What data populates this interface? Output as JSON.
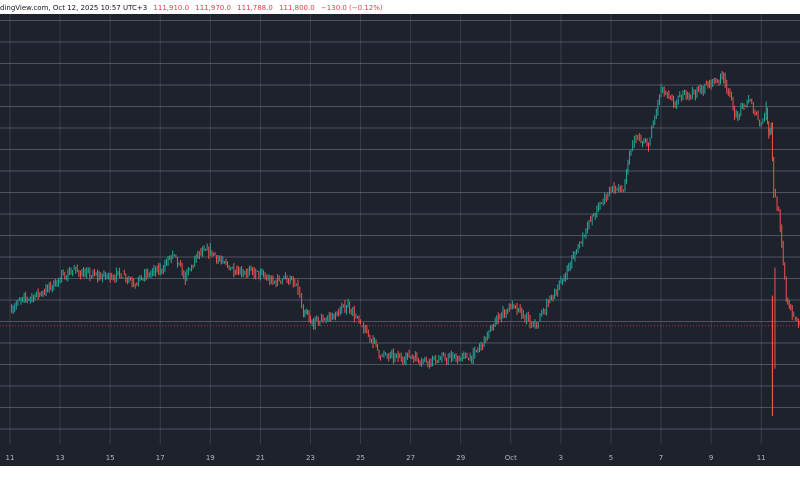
{
  "header": {
    "source": "dingView.com, Oct 12, 2025 10:57 UTC+3",
    "ohlc": [
      "111,910.0",
      "111,970.0",
      "111,788.0",
      "111,800.0",
      "−130.0 (−0.12%)"
    ]
  },
  "colors": {
    "background": "#1e222d",
    "grid": "#787b86",
    "up": "#26a69a",
    "down": "#ef5350",
    "header_change": "#f23645",
    "price_line": "#f23645"
  },
  "chart_data": {
    "type": "line",
    "title": "",
    "xlabel": "",
    "ylabel": "",
    "legend": "none",
    "grid": true,
    "x_ticks": [
      "11",
      "13",
      "15",
      "17",
      "19",
      "21",
      "23",
      "25",
      "27",
      "29",
      "Oct",
      "3",
      "5",
      "7",
      "9",
      "11"
    ],
    "x_domain": [
      0,
      31.55
    ],
    "ylim": [
      106300,
      126300
    ],
    "y_grid_step": 1000,
    "current_price": 111800,
    "series": [
      {
        "x": [
          0,
          0.5,
          1,
          1.5,
          2,
          2.5,
          3,
          3.5,
          4,
          4.5,
          5,
          5.5,
          6,
          6.5,
          7,
          7.5,
          8,
          8.5,
          9,
          9.5,
          10,
          10.5,
          11,
          11.5,
          11.72,
          11.83,
          12,
          12.5,
          13,
          13.5,
          14,
          14.5,
          14.8,
          15,
          15.5,
          16,
          16.5,
          17,
          17.5,
          18,
          18.5,
          19,
          19.5,
          20,
          20.5,
          20.9,
          21.1,
          21.5,
          22,
          22.5,
          23,
          23.5,
          24,
          24.5,
          24.8,
          25,
          25.2,
          25.5,
          26,
          26.5,
          27,
          27.5,
          28,
          28.5,
          29,
          29.5,
          30,
          30.2,
          30.3,
          30.4,
          30.5,
          30.7,
          31,
          31.3,
          31.55
        ],
        "values": [
          112600,
          113000,
          113200,
          113500,
          114000,
          114400,
          114200,
          114100,
          114100,
          114200,
          113800,
          114200,
          114400,
          115100,
          114000,
          115100,
          115300,
          114700,
          114400,
          114300,
          114200,
          113800,
          114100,
          113500,
          112200,
          112400,
          111900,
          112100,
          112300,
          112800,
          111800,
          111100,
          110400,
          110400,
          110300,
          110400,
          110200,
          110200,
          110300,
          110300,
          110400,
          111200,
          112200,
          112700,
          112300,
          111700,
          112000,
          112900,
          113800,
          115000,
          116300,
          117300,
          118200,
          118100,
          120000,
          120600,
          120300,
          120200,
          122800,
          122100,
          122600,
          122700,
          123100,
          123400,
          121500,
          122300,
          121200,
          121900,
          120800,
          121200,
          118000,
          117000,
          113100,
          112200,
          111800
        ]
      }
    ]
  }
}
